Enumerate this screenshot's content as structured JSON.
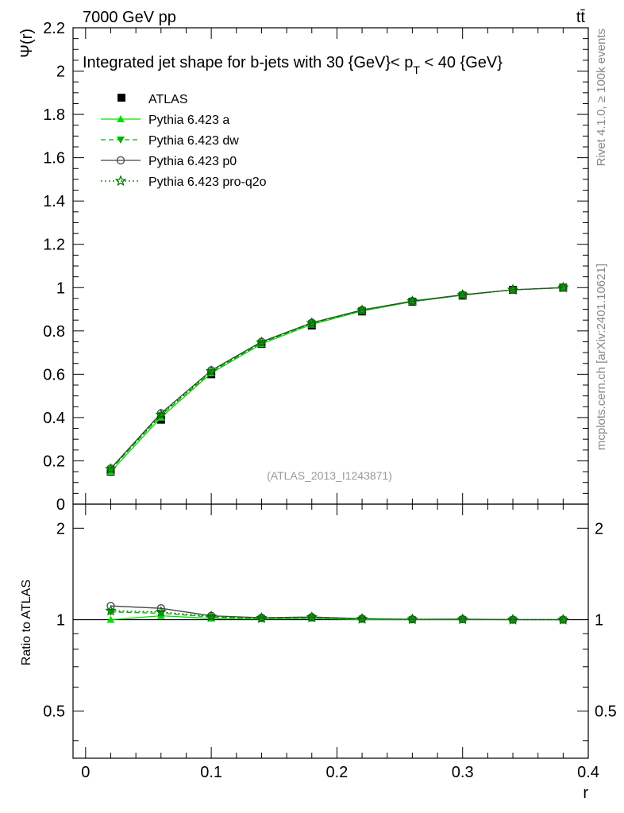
{
  "header": {
    "energy_label": "7000 GeV pp",
    "process_label": "tt̄",
    "side_label_rivet": "Rivet 4.1.0, ≥ 100k events",
    "side_label_site": "mcplots.cern.ch [arXiv:2401.10621]",
    "analysis_label": "(ATLAS_2013_I1243871)"
  },
  "chart_data": [
    {
      "type": "line",
      "panel": "main",
      "title_text": "Integrated jet shape for b-jets with 30 {GeV}< p",
      "title_sub": "T",
      "title_tail": " < 40 {GeV}",
      "ylabel": "Ψ(r)",
      "xlabel": "r",
      "xlim": [
        -0.01,
        0.4
      ],
      "ylim": [
        0,
        2.2
      ],
      "yticks": [
        0,
        0.2,
        0.4,
        0.6,
        0.8,
        1,
        1.2,
        1.4,
        1.6,
        1.8,
        2,
        2.2
      ],
      "ytick_labels": [
        "0",
        "0.2",
        "0.4",
        "0.6",
        "0.8",
        "1",
        "1.2",
        "1.4",
        "1.6",
        "1.8",
        "2",
        "2.2"
      ],
      "x": [
        0.02,
        0.06,
        0.1,
        0.14,
        0.18,
        0.22,
        0.26,
        0.3,
        0.34,
        0.38
      ],
      "data": {
        "name": "ATLAS",
        "values": [
          0.15,
          0.39,
          0.6,
          0.74,
          0.825,
          0.89,
          0.935,
          0.963,
          0.99,
          1.0
        ],
        "color": "#000000"
      },
      "series": [
        {
          "name": "Pythia 6.423 a",
          "values": [
            0.15,
            0.4,
            0.605,
            0.74,
            0.83,
            0.892,
            0.935,
            0.965,
            0.99,
            1.0
          ],
          "color": "#00e000",
          "dash": "solid",
          "marker": "triangle-up"
        },
        {
          "name": "Pythia 6.423 dw",
          "values": [
            0.16,
            0.41,
            0.61,
            0.745,
            0.835,
            0.895,
            0.937,
            0.966,
            0.99,
            1.0
          ],
          "color": "#00b000",
          "dash": "dashed",
          "marker": "triangle-down"
        },
        {
          "name": "Pythia 6.423 p0",
          "values": [
            0.165,
            0.42,
            0.618,
            0.75,
            0.838,
            0.897,
            0.938,
            0.967,
            0.99,
            1.0
          ],
          "color": "#444444",
          "dash": "solid",
          "marker": "circle-open"
        },
        {
          "name": "Pythia 6.423 pro-q2o",
          "values": [
            0.162,
            0.413,
            0.614,
            0.747,
            0.836,
            0.895,
            0.937,
            0.966,
            0.99,
            1.0
          ],
          "color": "#007000",
          "dash": "dotted",
          "marker": "star-open"
        }
      ],
      "legend_position": "top-left"
    },
    {
      "type": "line",
      "panel": "ratio",
      "ylabel": "Ratio to ATLAS",
      "xlabel": "r",
      "xlim": [
        -0.01,
        0.4
      ],
      "ylim": [
        0.35,
        2.4
      ],
      "log_y": true,
      "yticks": [
        0.5,
        1,
        2
      ],
      "ytick_labels": [
        "0.5",
        "1",
        "2"
      ],
      "xticks": [
        0,
        0.1,
        0.2,
        0.3,
        0.4
      ],
      "xtick_labels": [
        "0",
        "0.1",
        "0.2",
        "0.3",
        "0.4"
      ],
      "x": [
        0.02,
        0.06,
        0.1,
        0.14,
        0.18,
        0.22,
        0.26,
        0.3,
        0.34,
        0.38
      ],
      "series": [
        {
          "name": "Pythia 6.423 a",
          "values": [
            1.0,
            1.03,
            1.01,
            1.005,
            1.01,
            1.0,
            1.0,
            1.0,
            1.0,
            1.0
          ],
          "color": "#00e000",
          "dash": "solid",
          "marker": "triangle-up"
        },
        {
          "name": "Pythia 6.423 dw",
          "values": [
            1.06,
            1.05,
            1.02,
            1.01,
            1.015,
            1.005,
            1.002,
            1.003,
            1.0,
            1.0
          ],
          "color": "#00b000",
          "dash": "dashed",
          "marker": "triangle-down"
        },
        {
          "name": "Pythia 6.423 p0",
          "values": [
            1.11,
            1.09,
            1.03,
            1.015,
            1.02,
            1.008,
            1.003,
            1.004,
            1.0,
            1.0
          ],
          "color": "#444444",
          "dash": "solid",
          "marker": "circle-open"
        },
        {
          "name": "Pythia 6.423 pro-q2o",
          "values": [
            1.07,
            1.06,
            1.025,
            1.012,
            1.018,
            1.006,
            1.003,
            1.003,
            1.0,
            1.0
          ],
          "color": "#007000",
          "dash": "dotted",
          "marker": "star-open"
        }
      ]
    }
  ]
}
